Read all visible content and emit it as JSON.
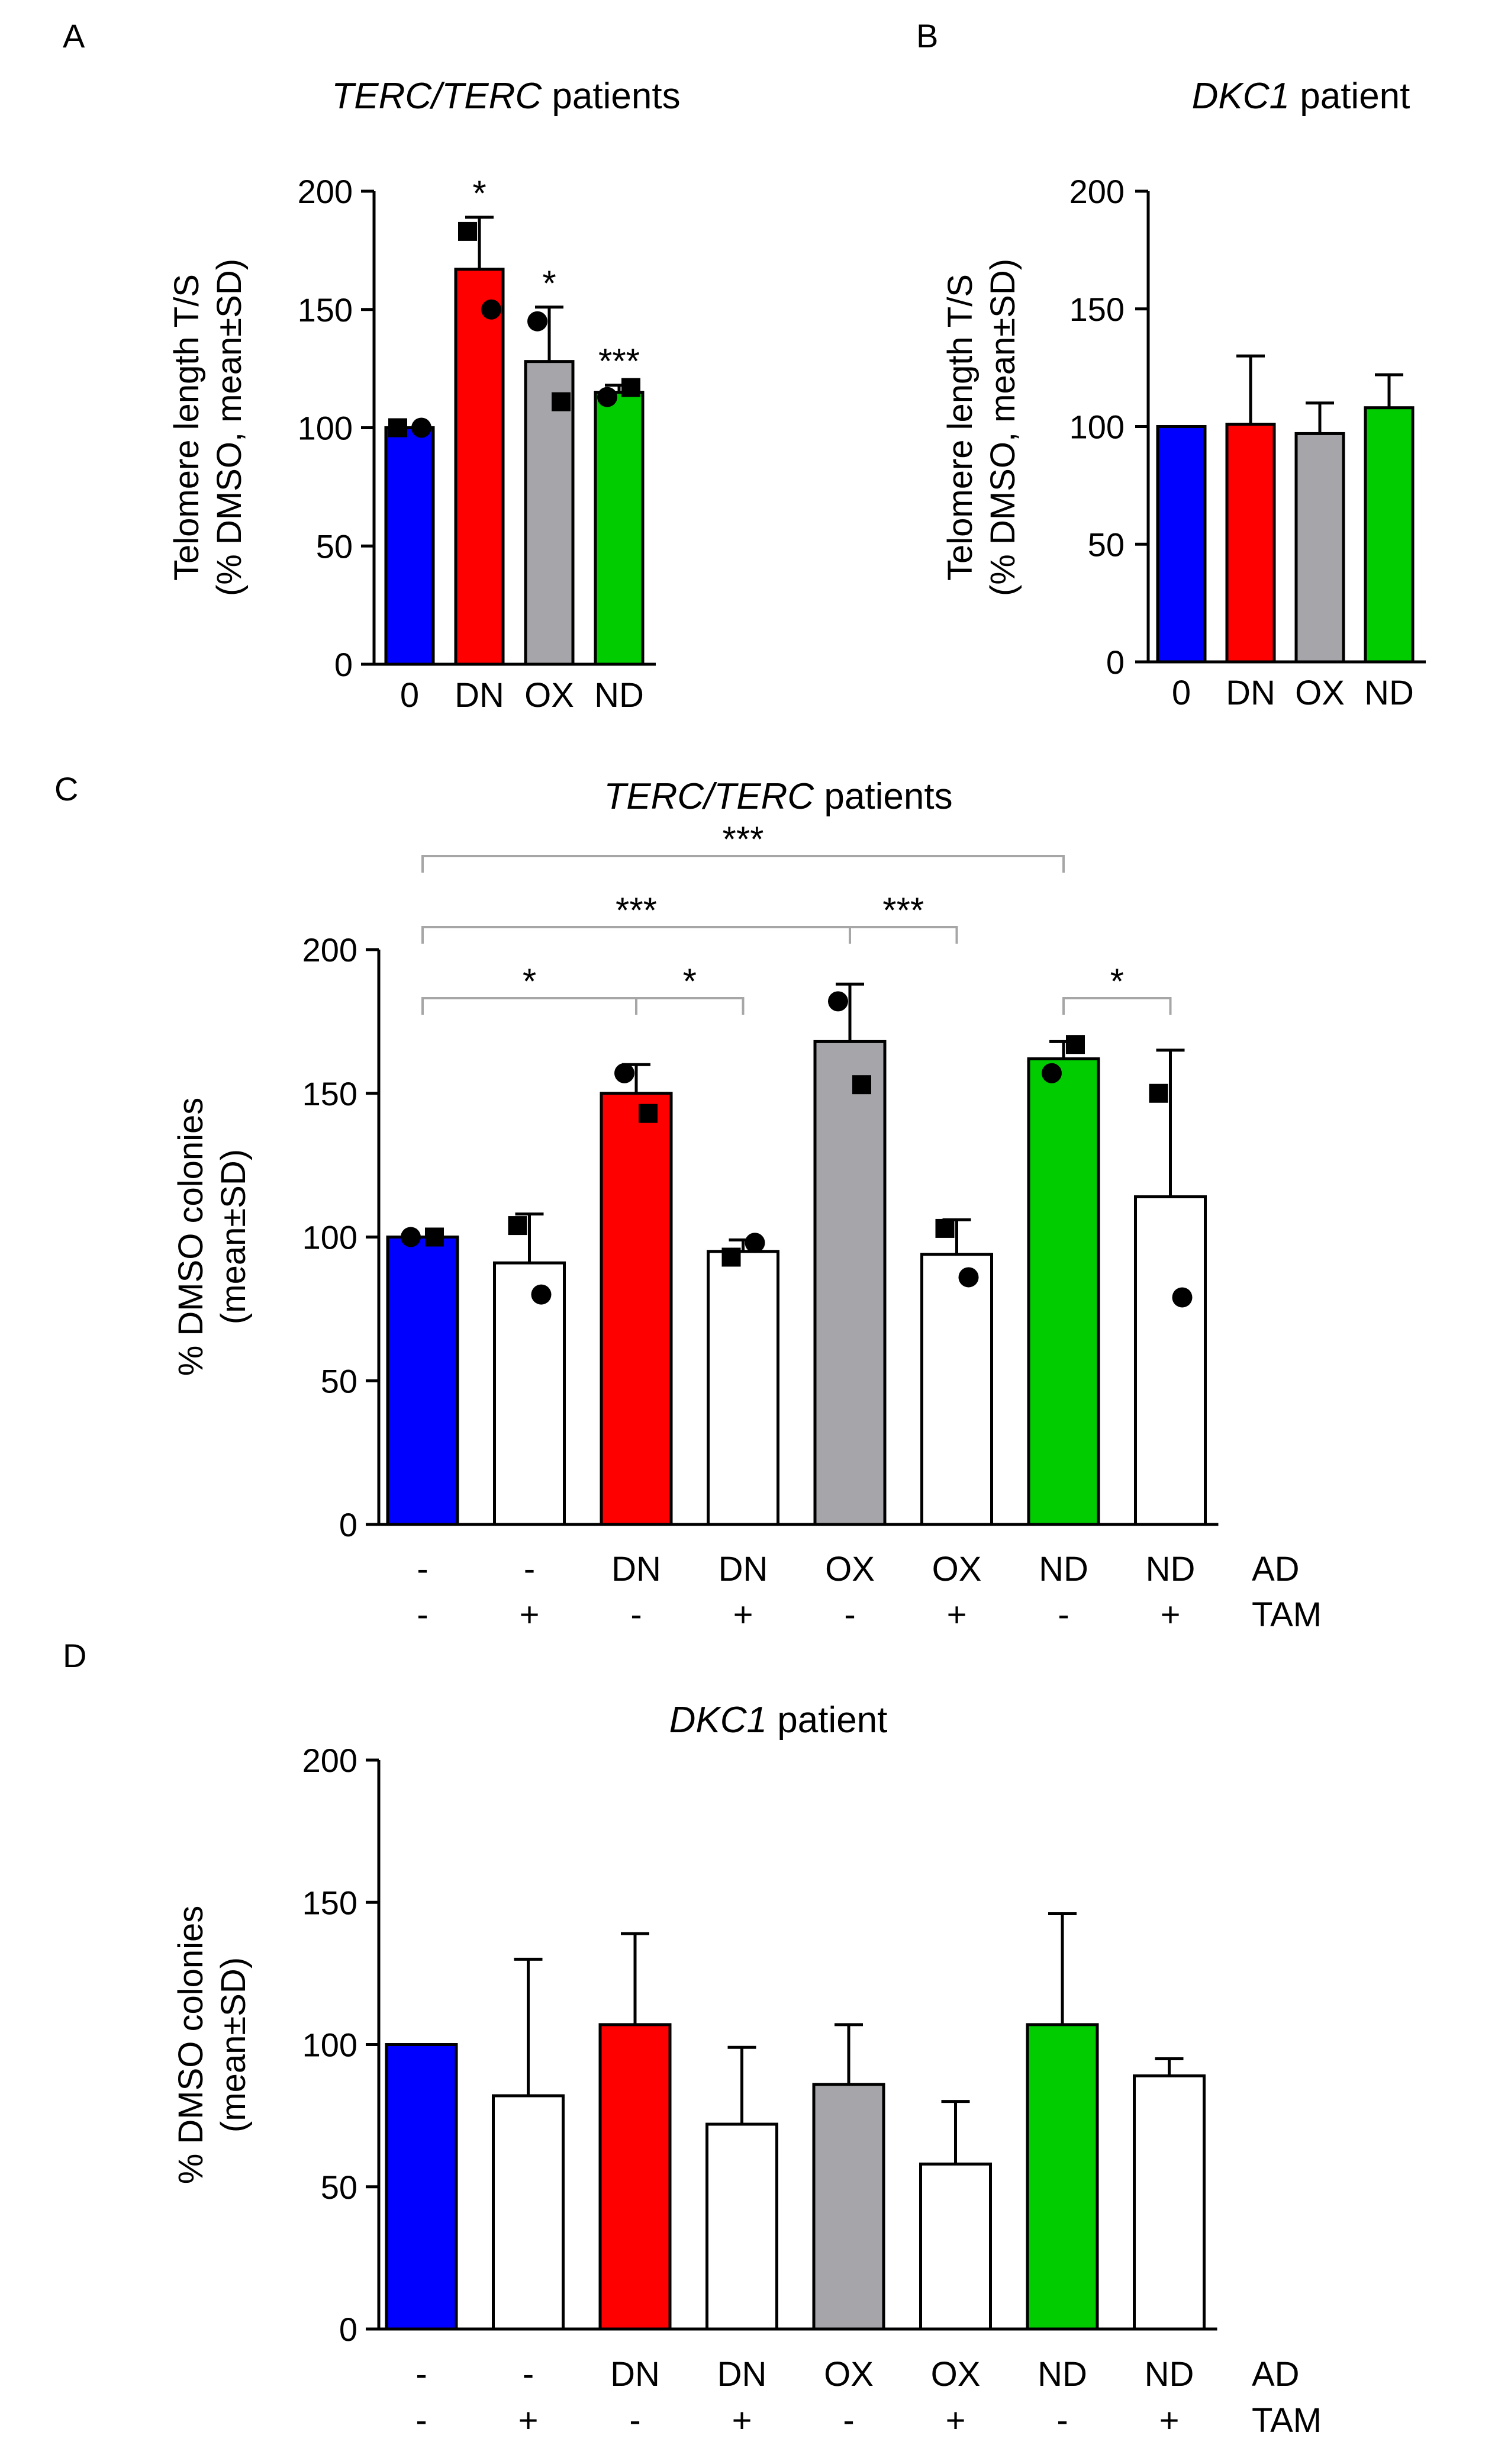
{
  "colors": {
    "blue": "#0000ff",
    "red": "#ff0000",
    "gray": "#a6a6aa",
    "green": "#00cc00",
    "white": "#ffffff",
    "bracket": "#a6a6a6"
  },
  "chart_data": [
    {
      "panel": "A",
      "type": "bar",
      "title": "TERC/TERC patients",
      "title_italic": "TERC/TERC",
      "title_rest": " patients",
      "ylabel_lines": [
        "Telomere length T/S",
        "(% DMSO, mean±SD)"
      ],
      "ylim": [
        0,
        200
      ],
      "yticks": [
        0,
        50,
        100,
        150,
        200
      ],
      "categories": [
        "0",
        "DN",
        "OX",
        "ND"
      ],
      "values": [
        100,
        167,
        128,
        115
      ],
      "sd": [
        0,
        22,
        23,
        3
      ],
      "fills": [
        "blue",
        "red",
        "gray",
        "green"
      ],
      "points": [
        [
          {
            "v": 100,
            "m": "square"
          },
          {
            "v": 100,
            "m": "circle"
          }
        ],
        [
          {
            "v": 183,
            "m": "square"
          },
          {
            "v": 150,
            "m": "circle"
          }
        ],
        [
          {
            "v": 145,
            "m": "circle"
          },
          {
            "v": 111,
            "m": "square"
          }
        ],
        [
          {
            "v": 113,
            "m": "circle"
          },
          {
            "v": 117,
            "m": "square"
          }
        ]
      ],
      "stars": [
        "",
        "*",
        "*",
        "***"
      ]
    },
    {
      "panel": "B",
      "type": "bar",
      "title": "DKC1 patient",
      "title_italic": "DKC1",
      "title_rest": " patient",
      "ylabel_lines": [
        "Telomere length T/S",
        "(% DMSO, mean±SD)"
      ],
      "ylim": [
        0,
        200
      ],
      "yticks": [
        0,
        50,
        100,
        150,
        200
      ],
      "categories": [
        "0",
        "DN",
        "OX",
        "ND"
      ],
      "values": [
        100,
        101,
        97,
        108
      ],
      "sd": [
        0,
        29,
        13,
        14
      ],
      "fills": [
        "blue",
        "red",
        "gray",
        "green"
      ],
      "points": [],
      "stars": [
        "",
        "",
        "",
        ""
      ]
    },
    {
      "panel": "C",
      "type": "bar",
      "title": "TERC/TERC patients",
      "title_italic": "TERC/TERC",
      "title_rest": " patients",
      "ylabel_lines": [
        "% DMSO colonies",
        "(mean±SD)"
      ],
      "ylim": [
        0,
        200
      ],
      "yticks": [
        0,
        50,
        100,
        150,
        200
      ],
      "row1_label": "AD",
      "row2_label": "TAM",
      "categories_ad": [
        "-",
        "-",
        "DN",
        "DN",
        "OX",
        "OX",
        "ND",
        "ND"
      ],
      "categories_tam": [
        "-",
        "+",
        "-",
        "+",
        "-",
        "+",
        "-",
        "+"
      ],
      "values": [
        100,
        91,
        150,
        95,
        168,
        94,
        162,
        114
      ],
      "sd": [
        0,
        17,
        10,
        4,
        20,
        12,
        6,
        51
      ],
      "fills": [
        "blue",
        "white",
        "red",
        "white",
        "gray",
        "white",
        "green",
        "white"
      ],
      "points": [
        [
          {
            "v": 100,
            "m": "circle"
          },
          {
            "v": 100,
            "m": "square"
          }
        ],
        [
          {
            "v": 104,
            "m": "square"
          },
          {
            "v": 80,
            "m": "circle"
          }
        ],
        [
          {
            "v": 157,
            "m": "circle"
          },
          {
            "v": 143,
            "m": "square"
          }
        ],
        [
          {
            "v": 93,
            "m": "square"
          },
          {
            "v": 98,
            "m": "circle"
          }
        ],
        [
          {
            "v": 182,
            "m": "circle"
          },
          {
            "v": 153,
            "m": "square"
          }
        ],
        [
          {
            "v": 103,
            "m": "square"
          },
          {
            "v": 86,
            "m": "circle"
          }
        ],
        [
          {
            "v": 157,
            "m": "circle"
          },
          {
            "v": 167,
            "m": "square"
          }
        ],
        [
          {
            "v": 150,
            "m": "square"
          },
          {
            "v": 79,
            "m": "circle"
          }
        ]
      ],
      "comparisons": [
        {
          "from": 0,
          "to": 2,
          "level": 0,
          "label": "*"
        },
        {
          "from": 2,
          "to": 3,
          "level": 0,
          "label": "*"
        },
        {
          "from": 0,
          "to": 4,
          "level": 1,
          "label": "***"
        },
        {
          "from": 4,
          "to": 5,
          "level": 1,
          "label": "***"
        },
        {
          "from": 6,
          "to": 7,
          "level": 0,
          "label": "*"
        },
        {
          "from": 0,
          "to": 6,
          "level": 2,
          "label": "***"
        }
      ]
    },
    {
      "panel": "D",
      "type": "bar",
      "title": "DKC1 patient",
      "title_italic": "DKC1",
      "title_rest": " patient",
      "ylabel_lines": [
        "% DMSO colonies",
        "(mean±SD)"
      ],
      "ylim": [
        0,
        200
      ],
      "yticks": [
        0,
        50,
        100,
        150,
        200
      ],
      "row1_label": "AD",
      "row2_label": "TAM",
      "categories_ad": [
        "-",
        "-",
        "DN",
        "DN",
        "OX",
        "OX",
        "ND",
        "ND"
      ],
      "categories_tam": [
        "-",
        "+",
        "-",
        "+",
        "-",
        "+",
        "-",
        "+"
      ],
      "values": [
        100,
        82,
        107,
        72,
        86,
        58,
        107,
        89
      ],
      "sd": [
        0,
        48,
        32,
        27,
        21,
        22,
        39,
        6
      ],
      "fills": [
        "blue",
        "white",
        "red",
        "white",
        "gray",
        "white",
        "green",
        "white"
      ],
      "points": [],
      "comparisons": []
    }
  ]
}
